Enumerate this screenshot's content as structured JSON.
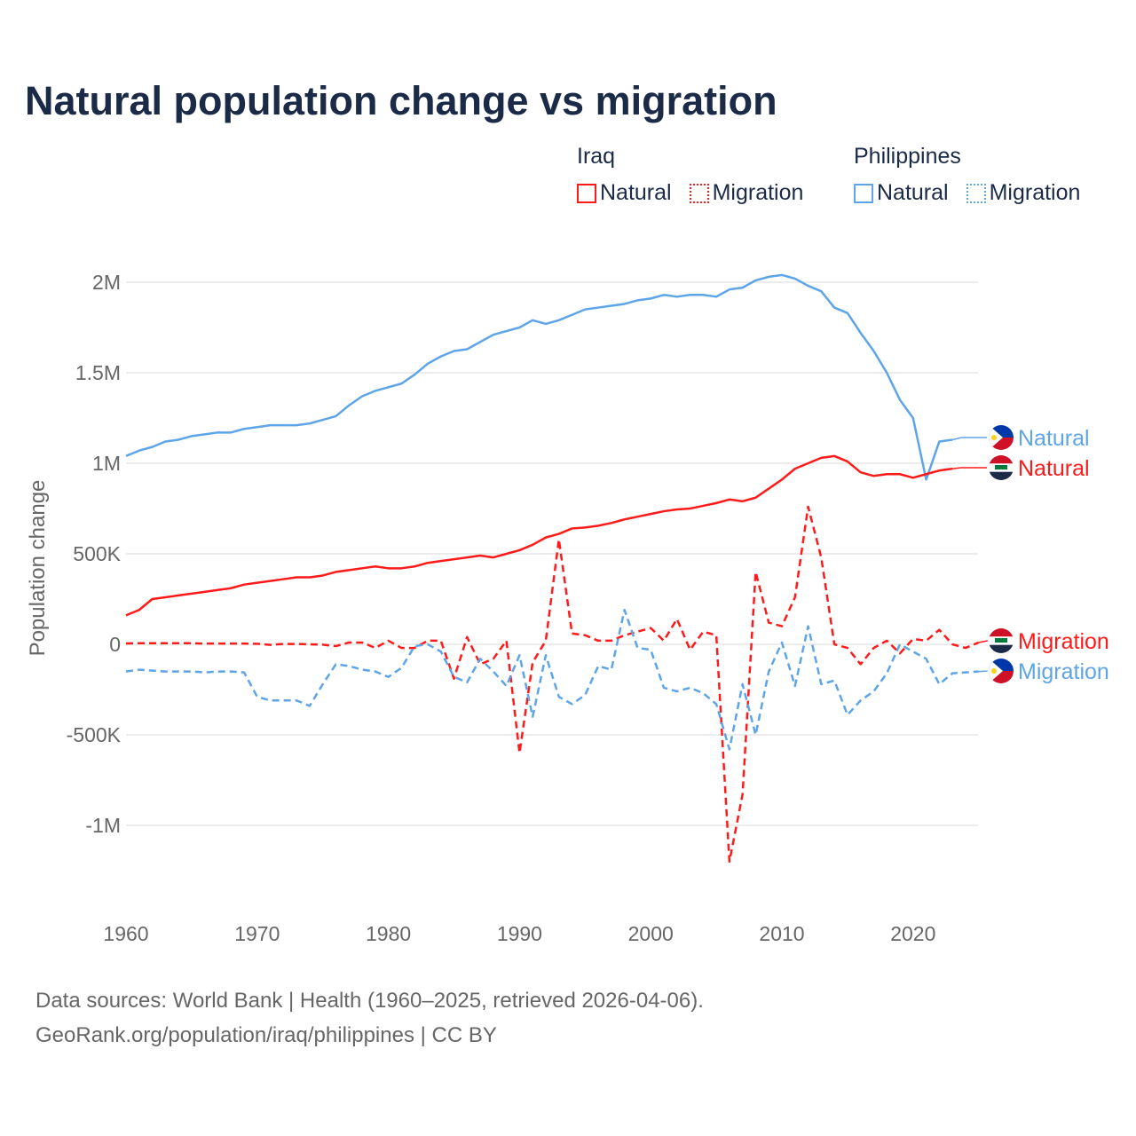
{
  "title": "Natural population change vs migration",
  "legend": {
    "groups": [
      {
        "name": "Iraq",
        "items": [
          "Natural",
          "Migration"
        ],
        "color": "#ff1a1a"
      },
      {
        "name": "Philippines",
        "items": [
          "Natural",
          "Migration"
        ],
        "color": "#5da5e8"
      }
    ]
  },
  "footer": {
    "line1": "Data sources: World Bank | Health (1960–2025, retrieved 2026-04-06).",
    "line2": "GeoRank.org/population/iraq/philippines | CC BY"
  },
  "chart_data": {
    "type": "line",
    "title": "Natural population change vs migration",
    "xlabel": "",
    "ylabel": "Population change",
    "xlim": [
      1960,
      2025
    ],
    "ylim": [
      -1200000,
      2100000
    ],
    "x_ticks": [
      1960,
      1970,
      1980,
      1990,
      2000,
      2010,
      2020
    ],
    "x_tick_labels": [
      "1960",
      "1970",
      "1980",
      "1990",
      "2000",
      "2010",
      "2020"
    ],
    "y_ticks": [
      -1000000,
      -500000,
      0,
      500000,
      1000000,
      1500000,
      2000000
    ],
    "y_tick_labels": [
      "-1M",
      "-500K",
      "0",
      "500K",
      "1M",
      "1.5M",
      "2M"
    ],
    "grid": true,
    "legend_position": "top-right",
    "series": [
      {
        "name": "Philippines Natural",
        "label": "Natural",
        "country": "Philippines",
        "color": "#5da5e8",
        "dash": false,
        "start": 1960,
        "values": [
          1.04,
          1.07,
          1.09,
          1.12,
          1.13,
          1.15,
          1.16,
          1.17,
          1.17,
          1.19,
          1.2,
          1.21,
          1.21,
          1.21,
          1.22,
          1.24,
          1.26,
          1.32,
          1.37,
          1.4,
          1.42,
          1.44,
          1.49,
          1.55,
          1.59,
          1.62,
          1.63,
          1.67,
          1.71,
          1.73,
          1.75,
          1.79,
          1.77,
          1.79,
          1.82,
          1.85,
          1.86,
          1.87,
          1.88,
          1.9,
          1.91,
          1.93,
          1.92,
          1.93,
          1.93,
          1.92,
          1.96,
          1.97,
          2.01,
          2.03,
          2.04,
          2.02,
          1.98,
          1.95,
          1.86,
          1.83,
          1.72,
          1.62,
          1.5,
          1.35,
          1.25,
          0.91,
          1.12,
          1.13
        ],
        "unit": "millions"
      },
      {
        "name": "Iraq Natural",
        "label": "Natural",
        "country": "Iraq",
        "color": "#ff1a1a",
        "dash": false,
        "start": 1960,
        "values": [
          0.16,
          0.19,
          0.25,
          0.26,
          0.27,
          0.28,
          0.29,
          0.3,
          0.31,
          0.33,
          0.34,
          0.35,
          0.36,
          0.37,
          0.37,
          0.38,
          0.4,
          0.41,
          0.42,
          0.43,
          0.42,
          0.42,
          0.43,
          0.45,
          0.46,
          0.47,
          0.48,
          0.49,
          0.48,
          0.5,
          0.52,
          0.55,
          0.59,
          0.61,
          0.64,
          0.645,
          0.655,
          0.67,
          0.69,
          0.705,
          0.72,
          0.735,
          0.745,
          0.75,
          0.765,
          0.78,
          0.8,
          0.79,
          0.81,
          0.86,
          0.91,
          0.97,
          1.0,
          1.03,
          1.04,
          1.01,
          0.95,
          0.93,
          0.94,
          0.94,
          0.92,
          0.94,
          0.96,
          0.97
        ],
        "unit": "millions"
      },
      {
        "name": "Iraq Migration",
        "label": "Migration",
        "country": "Iraq",
        "color": "#ff1a1a",
        "dash": true,
        "start": 1960,
        "values": [
          0.005,
          0.006,
          0.006,
          0.006,
          0.006,
          0.006,
          0.004,
          0.004,
          0.004,
          0.004,
          0.003,
          -0.003,
          0.002,
          0.002,
          0.0,
          -0.002,
          -0.01,
          0.01,
          0.01,
          -0.02,
          0.02,
          -0.02,
          -0.02,
          0.02,
          0.02,
          -0.19,
          0.04,
          -0.11,
          -0.08,
          0.02,
          -0.6,
          -0.1,
          0.02,
          0.58,
          0.06,
          0.05,
          0.02,
          0.02,
          0.05,
          0.07,
          0.09,
          0.02,
          0.14,
          -0.03,
          0.07,
          0.05,
          -1.2,
          -0.83,
          0.4,
          0.12,
          0.1,
          0.26,
          0.76,
          0.48,
          0.0,
          -0.02,
          -0.11,
          -0.02,
          0.02,
          -0.05,
          0.03,
          0.02,
          0.08,
          0.0,
          -0.02,
          0.01
        ],
        "unit": "millions"
      },
      {
        "name": "Philippines Migration",
        "label": "Migration",
        "country": "Philippines",
        "color": "#5da5e8",
        "dash": true,
        "start": 1960,
        "values": [
          -0.15,
          -0.14,
          -0.145,
          -0.15,
          -0.15,
          -0.15,
          -0.155,
          -0.15,
          -0.15,
          -0.155,
          -0.29,
          -0.31,
          -0.31,
          -0.31,
          -0.34,
          -0.22,
          -0.11,
          -0.12,
          -0.14,
          -0.15,
          -0.18,
          -0.13,
          -0.01,
          0.0,
          -0.04,
          -0.18,
          -0.21,
          -0.08,
          -0.15,
          -0.23,
          -0.06,
          -0.4,
          -0.06,
          -0.29,
          -0.33,
          -0.28,
          -0.12,
          -0.14,
          0.19,
          -0.02,
          -0.03,
          -0.24,
          -0.26,
          -0.24,
          -0.27,
          -0.33,
          -0.58,
          -0.22,
          -0.5,
          -0.15,
          0.01,
          -0.23,
          0.1,
          -0.22,
          -0.2,
          -0.39,
          -0.31,
          -0.26,
          -0.16,
          0.0,
          -0.04,
          -0.08,
          -0.22,
          -0.16,
          -0.155,
          -0.15
        ],
        "unit": "millions"
      }
    ],
    "end_labels": [
      "Natural",
      "Natural",
      "Migration",
      "Migration"
    ]
  }
}
